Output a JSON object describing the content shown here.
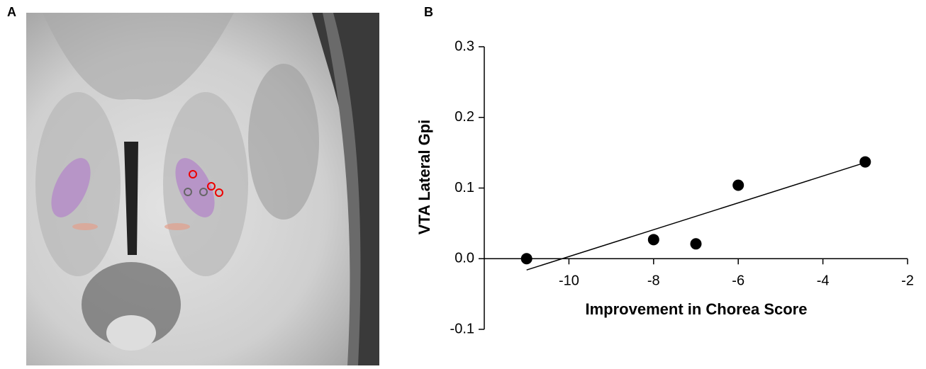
{
  "panel_labels": [
    "A",
    "B"
  ],
  "chart_data": {
    "type": "scatter",
    "xlabel": "Improvement in Chorea Score",
    "ylabel": "VTA Lateral Gpi",
    "xlim": [
      -12,
      -2
    ],
    "xticks": [
      -10,
      -8,
      -6,
      -4,
      -2
    ],
    "ylim": [
      -0.1,
      0.3
    ],
    "yticks": [
      -0.1,
      {
        "value": 0,
        "label": "0.0"
      },
      0.1,
      0.2,
      0.3
    ],
    "x_axis_crossing": "zero",
    "series": [
      {
        "type": "scatter",
        "color": "#000000",
        "x": [
          -11,
          -8,
          -7,
          -6,
          -3
        ],
        "values": [
          0.0,
          0.027,
          0.021,
          0.104,
          0.137
        ]
      },
      {
        "type": "line",
        "color": "#000000",
        "x": [
          -11,
          -3
        ],
        "values": [
          -0.016,
          0.136
        ]
      }
    ]
  }
}
